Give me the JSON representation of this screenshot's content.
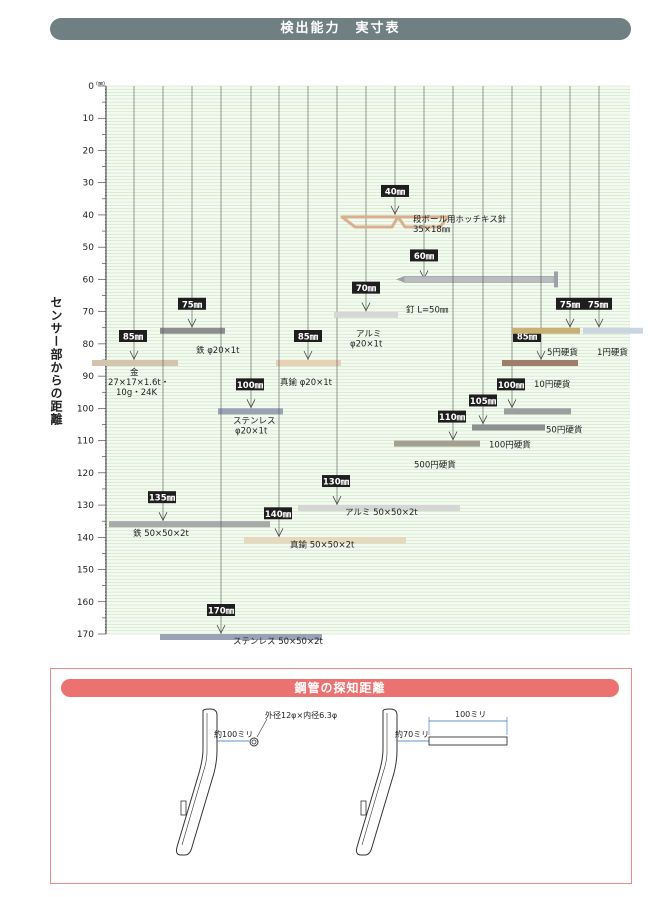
{
  "header": {
    "title": "検出能力　実寸表"
  },
  "chart_data": {
    "type": "bar",
    "ylabel": "センサー部からの距離",
    "yunit": "(㎜)",
    "ylim": [
      0,
      170
    ],
    "yticks": [
      0,
      10,
      20,
      30,
      40,
      50,
      60,
      70,
      80,
      90,
      100,
      110,
      120,
      130,
      140,
      150,
      160,
      170
    ],
    "bars": [
      {
        "badge": "85㎜",
        "value": 85,
        "labels": [
          "金",
          "27×17×1.6t・",
          "10g・24K"
        ],
        "color": "#d4c4ad"
      },
      {
        "badge": "75㎜",
        "value": 75,
        "labels": [
          "鉄  φ20×1t"
        ],
        "color": "#8e8e90"
      },
      {
        "badge": "135㎜",
        "value": 135,
        "labels": [
          "鉄  50×50×2t"
        ],
        "color": "#a9a9ab"
      },
      {
        "badge": "100㎜",
        "value": 100,
        "labels": [
          "ステンレス",
          "φ20×1t"
        ],
        "color": "#9aa3b6"
      },
      {
        "badge": "170㎜",
        "value": 170,
        "labels": [
          "ステンレス  50×50×2t"
        ],
        "color": "#9aa3b6"
      },
      {
        "badge": "85㎜",
        "value": 85,
        "labels": [
          "真鍮  φ20×1t"
        ],
        "color": "#e6d1b4"
      },
      {
        "badge": "140㎜",
        "value": 140,
        "labels": [
          "真鍮  50×50×2t"
        ],
        "color": "#e8d8be"
      },
      {
        "badge": "130㎜",
        "value": 130,
        "labels": [
          "アルミ  50×50×2t"
        ],
        "color": "#d6d6d6"
      },
      {
        "badge": "70㎜",
        "value": 70,
        "labels": [
          "アルミ",
          "φ20×1t"
        ],
        "color": "#d6d6d6"
      },
      {
        "badge": "40㎜",
        "value": 40,
        "labels": [
          "段ボール用ホッチキス針",
          "35×18㎜"
        ],
        "color": "#d9b08f"
      },
      {
        "badge": "60㎜",
        "value": 60,
        "labels": [
          "釘  L=50㎜"
        ],
        "color": "#b9bcc0"
      },
      {
        "badge": "110㎜",
        "value": 110,
        "labels": [
          "500円硬貨"
        ],
        "color": "#a3a092"
      },
      {
        "badge": "105㎜",
        "value": 105,
        "labels": [
          "100円硬貨"
        ],
        "color": "#8e8f92"
      },
      {
        "badge": "100㎜",
        "value": 100,
        "labels": [
          "50円硬貨"
        ],
        "color": "#9c9ea2"
      },
      {
        "badge": "85㎜",
        "value": 85,
        "labels": [
          "10円硬貨"
        ],
        "color": "#9e7e6a"
      },
      {
        "badge": "75㎜",
        "value": 75,
        "labels": [
          "5円硬貨"
        ],
        "color": "#c8b074"
      },
      {
        "badge": "75㎜",
        "value": 75,
        "labels": [
          "1円硬貨"
        ],
        "color": "#c9d6e0"
      }
    ]
  },
  "pipe": {
    "title": "鋼管の探知距離",
    "left": {
      "distance": "約100ミリ",
      "pipe_spec": "外径12φ×内径6.3φ"
    },
    "right": {
      "distance": "約70ミリ",
      "length": "100ミリ"
    }
  }
}
